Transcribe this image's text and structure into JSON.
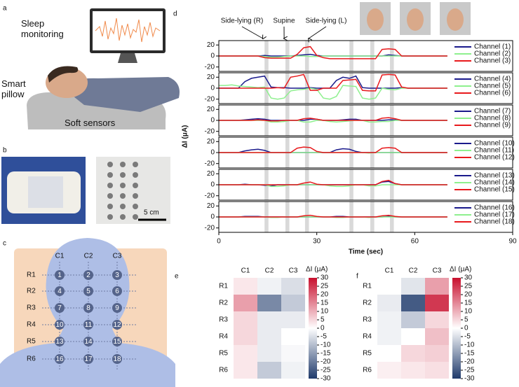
{
  "panel_labels": [
    "a",
    "b",
    "c",
    "d",
    "e",
    "f"
  ],
  "illustration_a": {
    "texts": [
      "Sleep monitoring",
      "Smart pillow",
      "Soft sensors"
    ]
  },
  "illustration_b": {
    "scale_bar": "5 cm"
  },
  "sensor_map": {
    "columns": [
      "C1",
      "C2",
      "C3"
    ],
    "rows": [
      "R1",
      "R2",
      "R3",
      "R4",
      "R5",
      "R6"
    ],
    "sensors": [
      "1",
      "2",
      "3",
      "4",
      "5",
      "6",
      "7",
      "8",
      "9",
      "10",
      "11",
      "12",
      "13",
      "14",
      "15",
      "16",
      "17",
      "18"
    ]
  },
  "chart_data": [
    {
      "type": "line",
      "x_label": "Time (sec)",
      "y_label": "ΔI (μA)",
      "xlim": [
        0,
        90
      ],
      "xticks": [
        0,
        30,
        60,
        90
      ],
      "ylim": [
        -28,
        28
      ],
      "yticks": [
        -20,
        0,
        20
      ],
      "annotations": [
        {
          "text": "Side-lying (R)",
          "x": 13.5
        },
        {
          "text": "Supine",
          "x": 20
        },
        {
          "text": "Side-lying (L)",
          "x": 27.5
        }
      ],
      "shaded_spans": [
        [
          14,
          15.2
        ],
        [
          20.4,
          21.6
        ],
        [
          26.4,
          27.6
        ],
        [
          40,
          41.2
        ],
        [
          46.4,
          47.6
        ],
        [
          52.4,
          53.6
        ]
      ],
      "x": [
        0,
        2,
        4,
        6,
        8,
        10,
        12,
        14,
        16,
        18,
        20,
        22,
        24,
        26,
        28,
        30,
        32,
        34,
        36,
        38,
        40,
        42,
        44,
        46,
        48,
        50,
        52,
        54,
        56,
        58,
        60,
        62,
        64,
        66,
        68,
        70
      ],
      "subplots": [
        {
          "series": [
            {
              "name": "Channel (1)",
              "color": "#1a1a8c",
              "values": [
                0,
                0,
                0,
                0,
                0,
                0,
                0,
                1,
                0,
                0,
                0,
                0,
                1,
                2,
                3,
                1,
                0,
                0,
                0,
                0,
                0,
                0,
                0,
                0,
                0,
                0,
                2,
                1,
                0,
                0,
                0,
                0,
                0,
                0,
                0,
                0
              ]
            },
            {
              "name": "Channel (2)",
              "color": "#8ef08e",
              "values": [
                0,
                0,
                0,
                0,
                0,
                0,
                0,
                -1,
                -2,
                -2,
                -1,
                0,
                0,
                0,
                -1,
                -1,
                0,
                0,
                0,
                0,
                0,
                0,
                0,
                0,
                0,
                0,
                0,
                0,
                0,
                0,
                0,
                0,
                0,
                0,
                0,
                0
              ]
            },
            {
              "name": "Channel (3)",
              "color": "#e8191c",
              "values": [
                0,
                0,
                0,
                0,
                0,
                0,
                0,
                -3,
                -4,
                -4,
                -4,
                -4,
                3,
                15,
                17,
                1,
                -3,
                -5,
                -5,
                -5,
                -5,
                -5,
                -5,
                -5,
                -5,
                12,
                13,
                12,
                0,
                0,
                0,
                0,
                0,
                0,
                0,
                0
              ]
            }
          ]
        },
        {
          "series": [
            {
              "name": "Channel (4)",
              "color": "#1a1a8c",
              "values": [
                0,
                0,
                0,
                0,
                12,
                18,
                20,
                22,
                2,
                1,
                1,
                0,
                0,
                0,
                1,
                0,
                0,
                0,
                14,
                20,
                18,
                22,
                1,
                0,
                0,
                0,
                0,
                0,
                1,
                0,
                0,
                0,
                0,
                0,
                0,
                0
              ]
            },
            {
              "name": "Channel (5)",
              "color": "#8ef08e",
              "values": [
                5,
                5,
                6,
                4,
                3,
                2,
                1,
                2,
                -18,
                -20,
                -18,
                -5,
                -3,
                -2,
                0,
                -2,
                -18,
                -20,
                -15,
                5,
                4,
                3,
                -18,
                -20,
                -18,
                0,
                -2,
                -3,
                0,
                0,
                0,
                0,
                0,
                0,
                0,
                0
              ]
            },
            {
              "name": "Channel (6)",
              "color": "#e8191c",
              "values": [
                0,
                0,
                0,
                0,
                0,
                0,
                0,
                0,
                0,
                1,
                0,
                20,
                22,
                25,
                -4,
                -4,
                0,
                0,
                0,
                14,
                15,
                16,
                -4,
                -5,
                -5,
                24,
                25,
                24,
                2,
                0,
                0,
                0,
                0,
                0,
                0,
                0
              ]
            }
          ]
        },
        {
          "series": [
            {
              "name": "Channel (7)",
              "color": "#1a1a8c",
              "values": [
                0,
                0,
                0,
                0,
                1,
                2,
                3,
                2,
                0,
                0,
                0,
                0,
                0,
                0,
                2,
                2,
                0,
                0,
                0,
                1,
                2,
                2,
                0,
                0,
                0,
                0,
                1,
                1,
                0,
                0,
                0,
                0,
                0,
                0,
                0,
                0
              ]
            },
            {
              "name": "Channel (8)",
              "color": "#8ef08e",
              "values": [
                0,
                0,
                0,
                0,
                0,
                0,
                0,
                0,
                -3,
                -3,
                -2,
                0,
                0,
                -3,
                -3,
                0,
                0,
                -2,
                -3,
                -2,
                -1,
                0,
                0,
                -3,
                -3,
                -2,
                -2,
                0,
                0,
                0,
                0,
                0,
                0,
                0,
                0,
                0
              ]
            },
            {
              "name": "Channel (9)",
              "color": "#e8191c",
              "values": [
                0,
                0,
                0,
                0,
                0,
                0,
                1,
                0,
                -1,
                -1,
                0,
                0,
                0,
                3,
                4,
                2,
                0,
                0,
                0,
                0,
                0,
                0,
                0,
                0,
                0,
                4,
                5,
                3,
                0,
                0,
                0,
                0,
                0,
                0,
                0,
                0
              ]
            }
          ]
        },
        {
          "series": [
            {
              "name": "Channel (10)",
              "color": "#1a1a8c",
              "values": [
                0,
                0,
                0,
                0,
                3,
                5,
                6,
                4,
                0,
                0,
                0,
                0,
                0,
                0,
                0,
                0,
                0,
                0,
                5,
                7,
                6,
                2,
                0,
                0,
                0,
                0,
                0,
                0,
                0,
                0,
                0,
                0,
                0,
                0,
                0,
                0
              ]
            },
            {
              "name": "Channel (11)",
              "color": "#8ef08e",
              "values": [
                0,
                0,
                0,
                0,
                0,
                0,
                0,
                0,
                0,
                0,
                0,
                0,
                0,
                0,
                0,
                0,
                0,
                0,
                0,
                0,
                0,
                0,
                0,
                -1,
                0,
                0,
                0,
                0,
                0,
                0,
                0,
                0,
                0,
                0,
                0,
                0
              ]
            },
            {
              "name": "Channel (12)",
              "color": "#e8191c",
              "values": [
                0,
                0,
                0,
                0,
                0,
                0,
                0,
                0,
                0,
                0,
                0,
                0,
                8,
                10,
                9,
                2,
                0,
                0,
                0,
                0,
                0,
                0,
                0,
                0,
                0,
                8,
                9,
                8,
                0,
                0,
                0,
                0,
                0,
                0,
                0,
                0
              ]
            }
          ]
        },
        {
          "series": [
            {
              "name": "Channel (13)",
              "color": "#1a1a8c",
              "values": [
                0,
                0,
                0,
                0,
                1,
                0,
                0,
                -1,
                -2,
                0,
                0,
                0,
                0,
                0,
                0,
                0,
                0,
                0,
                0,
                0,
                0,
                0,
                0,
                0,
                0,
                5,
                6,
                2,
                0,
                0,
                0,
                0,
                0,
                0,
                0,
                0
              ]
            },
            {
              "name": "Channel (14)",
              "color": "#8ef08e",
              "values": [
                0,
                0,
                0,
                0,
                0,
                0,
                0,
                0,
                -3,
                -3,
                -2,
                0,
                0,
                0,
                0,
                0,
                0,
                -2,
                -3,
                -3,
                -2,
                0,
                0,
                -2,
                -2,
                0,
                0,
                0,
                0,
                0,
                0,
                0,
                0,
                0,
                0,
                0
              ]
            },
            {
              "name": "Channel (15)",
              "color": "#e8191c",
              "values": [
                0,
                0,
                0,
                0,
                0,
                0,
                0,
                0,
                0,
                0,
                0,
                0,
                0,
                3,
                5,
                1,
                0,
                0,
                0,
                0,
                0,
                0,
                0,
                0,
                0,
                6,
                8,
                2,
                0,
                0,
                0,
                0,
                0,
                0,
                0,
                0
              ]
            }
          ]
        },
        {
          "series": [
            {
              "name": "Channel (16)",
              "color": "#1a1a8c",
              "values": [
                0,
                0,
                0,
                0,
                1,
                1,
                1,
                0,
                0,
                0,
                0,
                0,
                0,
                0,
                0,
                0,
                0,
                0,
                1,
                1,
                0,
                0,
                0,
                0,
                0,
                0,
                1,
                0,
                0,
                0,
                0,
                0,
                0,
                0,
                0,
                0
              ]
            },
            {
              "name": "Channel (17)",
              "color": "#8ef08e",
              "values": [
                0,
                0,
                0,
                0,
                0,
                0,
                0,
                0,
                -1,
                -1,
                0,
                0,
                0,
                0,
                0,
                0,
                0,
                0,
                -1,
                -1,
                0,
                0,
                0,
                -1,
                0,
                0,
                0,
                0,
                0,
                0,
                0,
                0,
                0,
                0,
                0,
                0
              ]
            },
            {
              "name": "Channel (18)",
              "color": "#e8191c",
              "values": [
                0,
                0,
                0,
                0,
                0,
                0,
                0,
                0,
                0,
                0,
                0,
                0,
                0,
                2,
                3,
                1,
                0,
                0,
                0,
                0,
                0,
                0,
                0,
                0,
                0,
                2,
                3,
                1,
                0,
                0,
                0,
                0,
                0,
                0,
                0,
                0
              ]
            }
          ]
        }
      ]
    },
    {
      "type": "heatmap",
      "x_categories": [
        "C1",
        "C2",
        "C3"
      ],
      "y_categories": [
        "R1",
        "R2",
        "R3",
        "R4",
        "R5",
        "R6"
      ],
      "values": [
        [
          3,
          -2,
          -5
        ],
        [
          12,
          -18,
          -8
        ],
        [
          5,
          -3,
          -3
        ],
        [
          5,
          -3,
          0
        ],
        [
          3,
          -3,
          -1
        ],
        [
          3,
          -8,
          -2
        ]
      ],
      "colorbar_label": "ΔI (μA)",
      "zlim": [
        -30,
        30
      ],
      "zticks": [
        -30,
        -25,
        -20,
        -15,
        -10,
        -5,
        0,
        5,
        10,
        15,
        20,
        25,
        30
      ],
      "colormap": [
        "#1f3a6b",
        "#ffffff",
        "#c8102e"
      ]
    },
    {
      "type": "heatmap",
      "x_categories": [
        "C1",
        "C2",
        "C3"
      ],
      "y_categories": [
        "R1",
        "R2",
        "R3",
        "R4",
        "R5",
        "R6"
      ],
      "values": [
        [
          0,
          -4,
          12
        ],
        [
          -3,
          -25,
          25
        ],
        [
          -2,
          -8,
          5
        ],
        [
          -2,
          0,
          8
        ],
        [
          0,
          5,
          6
        ],
        [
          2,
          3,
          4
        ]
      ],
      "colorbar_label": "ΔI (μA)",
      "zlim": [
        -30,
        30
      ],
      "zticks": [
        -30,
        -25,
        -20,
        -15,
        -10,
        -5,
        0,
        5,
        10,
        15,
        20,
        25,
        30
      ],
      "colormap": [
        "#1f3a6b",
        "#ffffff",
        "#c8102e"
      ]
    }
  ]
}
